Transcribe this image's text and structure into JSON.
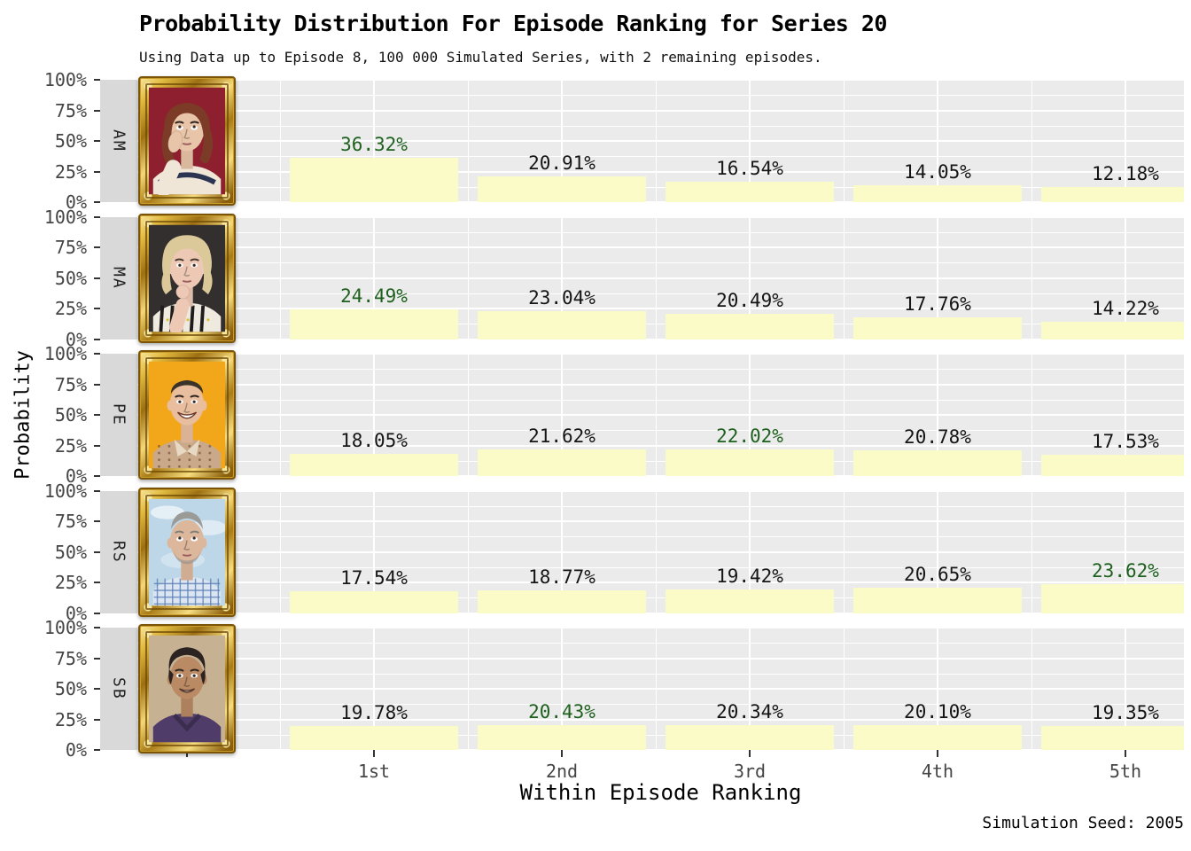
{
  "chart_data": {
    "type": "bar",
    "title": "Probability Distribution For Episode Ranking for Series 20",
    "subtitle": "Using Data up to Episode 8, 100 000 Simulated Series, with 2 remaining episodes.",
    "xlabel": "Within Episode Ranking",
    "ylabel": "Probability",
    "caption": "Simulation Seed: 2005",
    "categories": [
      "1st",
      "2nd",
      "3rd",
      "4th",
      "5th"
    ],
    "y_tick_labels": [
      "100%",
      "75%",
      "50%",
      "25%",
      "0%"
    ],
    "ylim": [
      0,
      100
    ],
    "grid": true,
    "legend": "none",
    "facet_layout": "rows",
    "series": [
      {
        "name": "AM",
        "values": [
          36.32,
          20.91,
          16.54,
          14.05,
          12.18
        ],
        "labels": [
          "36.32%",
          "20.91%",
          "16.54%",
          "14.05%",
          "12.18%"
        ],
        "best_rank_index": 0
      },
      {
        "name": "MA",
        "values": [
          24.49,
          23.04,
          20.49,
          17.76,
          14.22
        ],
        "labels": [
          "24.49%",
          "23.04%",
          "20.49%",
          "17.76%",
          "14.22%"
        ],
        "best_rank_index": 0
      },
      {
        "name": "PE",
        "values": [
          18.05,
          21.62,
          22.02,
          20.78,
          17.53
        ],
        "labels": [
          "18.05%",
          "21.62%",
          "22.02%",
          "20.78%",
          "17.53%"
        ],
        "best_rank_index": 2
      },
      {
        "name": "RS",
        "values": [
          17.54,
          18.77,
          19.42,
          20.65,
          23.62
        ],
        "labels": [
          "17.54%",
          "18.77%",
          "19.42%",
          "20.65%",
          "23.62%"
        ],
        "best_rank_index": 4
      },
      {
        "name": "SB",
        "values": [
          19.78,
          20.43,
          20.34,
          20.1,
          19.35
        ],
        "labels": [
          "19.78%",
          "20.43%",
          "20.34%",
          "20.10%",
          "19.35%"
        ],
        "best_rank_index": 1
      }
    ],
    "colors": {
      "bar_fill": "#FBFBC8",
      "panel_bg": "#EBEBEB",
      "strip_bg": "#D9D9D9",
      "grid_line": "#FFFFFF",
      "label_text": "#151515",
      "best_label_text": "#1E611E",
      "axis_text": "#454545",
      "frame_gold": "#D4A017"
    },
    "portraits": [
      {
        "initials": "AM",
        "bg": "#8E1F2F",
        "hair": "#7B3B26",
        "skin": "#E8C4A8",
        "shirt": "#EFE6D8",
        "accent": "#2B3450",
        "pose": "hand-on-cheek"
      },
      {
        "initials": "MA",
        "bg": "#332F2E",
        "hair": "#DCC99A",
        "skin": "#EDC9B5",
        "shirt": "#EFEADF",
        "accent": "#1F1C1B",
        "pose": "chin-on-hand"
      },
      {
        "initials": "PE",
        "bg": "#F2A71B",
        "hair": "#3A3128",
        "skin": "#E9BE9F",
        "shirt": "#C9A989",
        "accent": "#7A5238",
        "pose": "big-smile"
      },
      {
        "initials": "RS",
        "bg": "#BDD7E8",
        "hair": "#9A9A96",
        "skin": "#DDB79C",
        "shirt": "#DCE6F2",
        "accent": "#5B7FB5",
        "pose": "looking-up"
      },
      {
        "initials": "SB",
        "bg": "#C7B193",
        "hair": "#2A2322",
        "skin": "#B98A64",
        "shirt": "#4F3C68",
        "accent": "#3A2D4E",
        "pose": "smile"
      }
    ]
  }
}
